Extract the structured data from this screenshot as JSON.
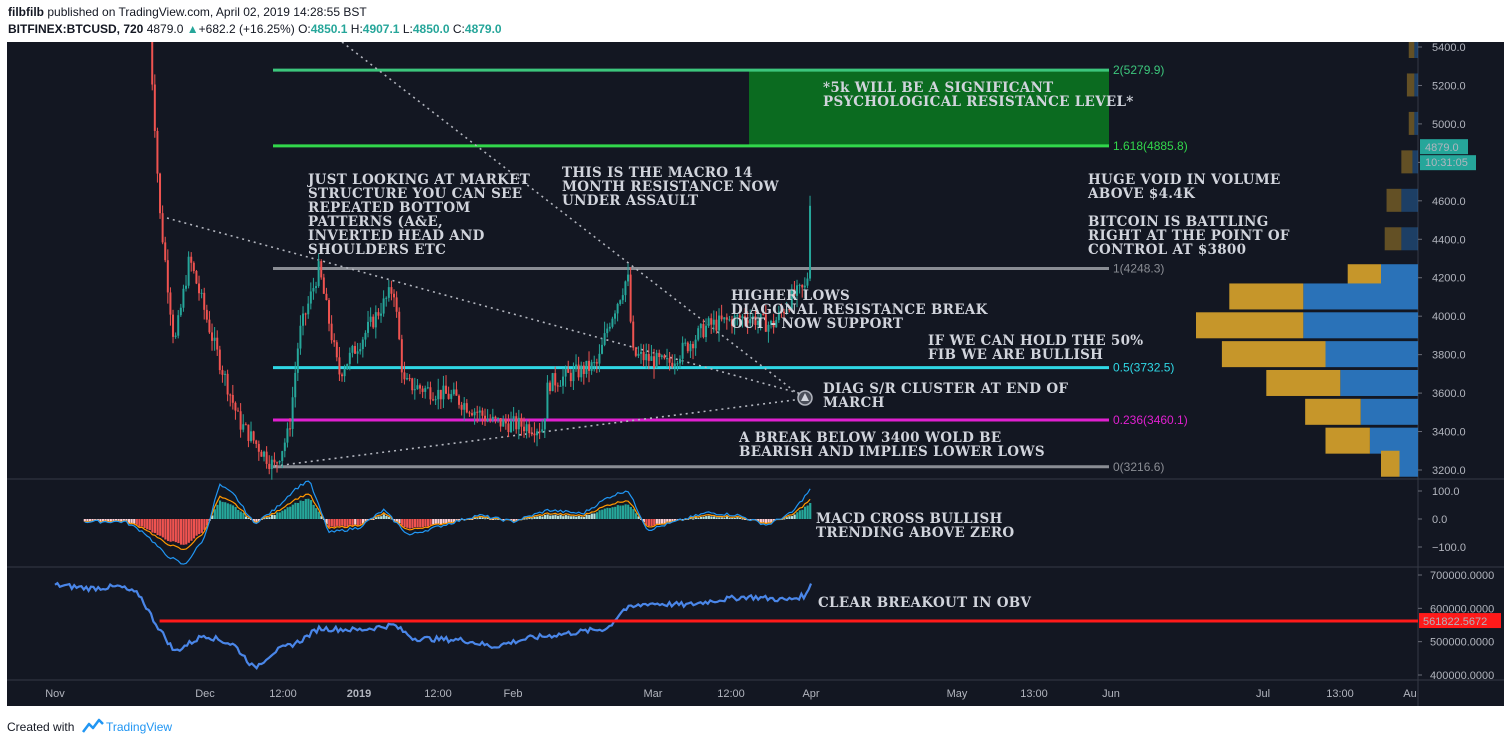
{
  "header": {
    "author": "filbfilb",
    "published_text": "published on TradingView.com, April 02, 2019 14:28:55 BST",
    "symbol": "BITFINEX:BTCUSD, 720",
    "last": "4879.0",
    "change": "+682.2 (+16.25%)",
    "o_label": "O:",
    "o_val": "4850.1",
    "h_label": "H:",
    "h_val": "4907.1",
    "l_label": "L:",
    "l_val": "4850.0",
    "c_label": "C:",
    "c_val": "4879.0"
  },
  "footer": {
    "created_with": "Created with",
    "brand": "TradingView"
  },
  "colors": {
    "background": "#131722",
    "up_candle": "#26a69a",
    "down_candle": "#ef5350",
    "fib_2": "#3cc67c",
    "fib_1618": "#32d74b",
    "fib_1": "#8a8d94",
    "fib_05": "#2fd8e6",
    "fib_0236": "#e020d0",
    "fib_0": "#8a8d94",
    "resistance_box": "#0b6b20",
    "obv_line": "#4a86e8",
    "obv_support": "#ff1a1a",
    "macd_line": "#2196f3",
    "signal_line": "#ff9800",
    "vp_up": "#2a72b8",
    "vp_down": "#c6962a"
  },
  "chart_data": [
    {
      "type": "candlestick",
      "title": "BITFINEX:BTCUSD, 720",
      "x_ticks": [
        "Nov",
        "Dec",
        "12:00",
        "2019",
        "12:00",
        "Feb",
        "Mar",
        "12:00",
        "Apr",
        "May",
        "13:00",
        "Jun",
        "Jul",
        "13:00",
        "Au"
      ],
      "y_ticks": [
        "5400.0",
        "5200.0",
        "5000.0",
        "4800.0",
        "4600.0",
        "4400.0",
        "4200.0",
        "4000.0",
        "3800.0",
        "3600.0",
        "3400.0",
        "3200.0"
      ],
      "ylim": [
        3150,
        5450
      ],
      "last_price": "4879.0",
      "countdown": "10:31:05",
      "price_path": [
        {
          "x": "Nov 20",
          "y": 5450
        },
        {
          "x": "Nov 22",
          "y": 4550
        },
        {
          "x": "Nov 25",
          "y": 3850
        },
        {
          "x": "Nov 28",
          "y": 4300
        },
        {
          "x": "Dec 3",
          "y": 3850
        },
        {
          "x": "Dec 8",
          "y": 3450
        },
        {
          "x": "Dec 15",
          "y": 3216.6
        },
        {
          "x": "Dec 18",
          "y": 3400
        },
        {
          "x": "Dec 20",
          "y": 3900
        },
        {
          "x": "Dec 24",
          "y": 4248
        },
        {
          "x": "Dec 28",
          "y": 3700
        },
        {
          "x": "Jan 2",
          "y": 3900
        },
        {
          "x": "Jan 8",
          "y": 4150
        },
        {
          "x": "Jan 10",
          "y": 3650
        },
        {
          "x": "Jan 20",
          "y": 3580
        },
        {
          "x": "Jan 28",
          "y": 3450
        },
        {
          "x": "Feb 7",
          "y": 3420
        },
        {
          "x": "Feb 8",
          "y": 3650
        },
        {
          "x": "Feb 18",
          "y": 3750
        },
        {
          "x": "Feb 20",
          "y": 3950
        },
        {
          "x": "Feb 24",
          "y": 4210
        },
        {
          "x": "Feb 25",
          "y": 3800
        },
        {
          "x": "Mar 4",
          "y": 3750
        },
        {
          "x": "Mar 12",
          "y": 3950
        },
        {
          "x": "Mar 20",
          "y": 4000
        },
        {
          "x": "Mar 25",
          "y": 3950
        },
        {
          "x": "Mar 29",
          "y": 4100
        },
        {
          "x": "Apr 1",
          "y": 4150
        },
        {
          "x": "Apr 2",
          "y": 4879
        }
      ],
      "fib_levels": [
        {
          "ratio": "2",
          "price": 5279.9,
          "label": "2(5279.9)"
        },
        {
          "ratio": "1.618",
          "price": 4885.8,
          "label": "1.618(4885.8)"
        },
        {
          "ratio": "1",
          "price": 4248.3,
          "label": "1(4248.3)"
        },
        {
          "ratio": "0.5",
          "price": 3732.5,
          "label": "0.5(3732.5)"
        },
        {
          "ratio": "0.236",
          "price": 3460.1,
          "label": "0.236(3460.1)"
        },
        {
          "ratio": "0",
          "price": 3216.6,
          "label": "0(3216.6)"
        }
      ],
      "volume_profile": [
        {
          "price": 5400,
          "up": 2,
          "down": 3
        },
        {
          "price": 5200,
          "up": 2,
          "down": 4
        },
        {
          "price": 5000,
          "up": 2,
          "down": 3
        },
        {
          "price": 4800,
          "up": 3,
          "down": 6
        },
        {
          "price": 4600,
          "up": 9,
          "down": 8
        },
        {
          "price": 4400,
          "up": 9,
          "down": 9
        },
        {
          "price": 4200,
          "up": 20,
          "down": 18
        },
        {
          "price": 4100,
          "up": 62,
          "down": 40
        },
        {
          "price": 3950,
          "up": 62,
          "down": 58
        },
        {
          "price": 3800,
          "up": 50,
          "down": 56
        },
        {
          "price": 3650,
          "up": 42,
          "down": 40
        },
        {
          "price": 3500,
          "up": 31,
          "down": 30
        },
        {
          "price": 3350,
          "up": 26,
          "down": 24
        },
        {
          "price": 3230,
          "up": 10,
          "down": 10
        }
      ],
      "annotations": {
        "resistance_note": [
          "*5k WILL BE A SIGNIFICANT",
          "PSYCHOLOGICAL RESISTANCE LEVEL*"
        ],
        "structure_note": [
          "JUST LOOKING AT MARKET",
          "STRUCTURE YOU CAN SEE",
          "REPEATED BOTTOM",
          "PATTERNS (A&E,",
          "INVERTED HEAD AND",
          "SHOULDERS ETC"
        ],
        "macro_note": [
          "THIS IS THE MACRO 14",
          "MONTH RESISTANCE NOW",
          "UNDER ASSAULT"
        ],
        "void_note": [
          "HUGE VOID IN VOLUME",
          "ABOVE $4.4K"
        ],
        "poc_note": [
          "BITCOIN IS BATTLING",
          "RIGHT AT THE POINT OF",
          "CONTROL AT $3800"
        ],
        "higher_lows_note": [
          "HIGHER LOWS",
          "DIAGONAL RESISTANCE BREAK",
          "OUT - NOW SUPPORT"
        ],
        "fib50_note": [
          "IF WE CAN HOLD THE 50%",
          "FIB WE ARE BULLISH"
        ],
        "diag_note": [
          "DIAG S/R  CLUSTER AT END OF",
          "MARCH"
        ],
        "break_note": [
          "A BREAK BELOW 3400 WOLD BE",
          "BEARISH AND IMPLIES LOWER LOWS"
        ]
      }
    },
    {
      "type": "bar",
      "title": "MACD",
      "y_ticks": [
        "100.0",
        "0.0",
        "−100.0"
      ],
      "ylim": [
        -180,
        140
      ],
      "annotation": [
        "MACD CROSS BULLISH",
        "TRENDING ABOVE ZERO"
      ],
      "histogram": [
        {
          "x": "Nov 15",
          "y": -8
        },
        {
          "x": "Nov 19",
          "y": -30
        },
        {
          "x": "Nov 23",
          "y": -72
        },
        {
          "x": "Nov 27",
          "y": -95
        },
        {
          "x": "Dec 1",
          "y": -40
        },
        {
          "x": "Dec 4",
          "y": 65
        },
        {
          "x": "Dec 7",
          "y": 45
        },
        {
          "x": "Dec 11",
          "y": -12
        },
        {
          "x": "Dec 15",
          "y": 15
        },
        {
          "x": "Dec 19",
          "y": 55
        },
        {
          "x": "Dec 22",
          "y": 75
        },
        {
          "x": "Dec 26",
          "y": -30
        },
        {
          "x": "Jan 1",
          "y": -20
        },
        {
          "x": "Jan 6",
          "y": 15
        },
        {
          "x": "Jan 11",
          "y": -35
        },
        {
          "x": "Jan 18",
          "y": -15
        },
        {
          "x": "Jan 25",
          "y": 5
        },
        {
          "x": "Feb 1",
          "y": -8
        },
        {
          "x": "Feb 8",
          "y": 15
        },
        {
          "x": "Feb 15",
          "y": 8
        },
        {
          "x": "Feb 20",
          "y": 40
        },
        {
          "x": "Feb 24",
          "y": 55
        },
        {
          "x": "Feb 28",
          "y": -25
        },
        {
          "x": "Mar 5",
          "y": -10
        },
        {
          "x": "Mar 12",
          "y": 10
        },
        {
          "x": "Mar 18",
          "y": 5
        },
        {
          "x": "Mar 24",
          "y": -15
        },
        {
          "x": "Mar 29",
          "y": 10
        },
        {
          "x": "Apr 2",
          "y": 60
        }
      ]
    },
    {
      "type": "line",
      "title": "OBV",
      "y_ticks": [
        "700000.0000",
        "600000.0000",
        "500000.0000",
        "400000.0000"
      ],
      "ylim": [
        395000,
        710000
      ],
      "support_level": "561822.5672",
      "annotation": "CLEAR BREAKOUT IN OBV",
      "obv": [
        {
          "x": "Nov 1",
          "y": 670000
        },
        {
          "x": "Nov 8",
          "y": 660000
        },
        {
          "x": "Nov 14",
          "y": 665000
        },
        {
          "x": "Nov 18",
          "y": 640000
        },
        {
          "x": "Nov 21",
          "y": 560000
        },
        {
          "x": "Nov 25",
          "y": 470000
        },
        {
          "x": "Dec 1",
          "y": 520000
        },
        {
          "x": "Dec 7",
          "y": 490000
        },
        {
          "x": "Dec 11",
          "y": 420000
        },
        {
          "x": "Dec 15",
          "y": 470000
        },
        {
          "x": "Dec 20",
          "y": 500000
        },
        {
          "x": "Dec 24",
          "y": 540000
        },
        {
          "x": "Jan 1",
          "y": 535000
        },
        {
          "x": "Jan 8",
          "y": 550000
        },
        {
          "x": "Jan 12",
          "y": 510000
        },
        {
          "x": "Jan 22",
          "y": 505000
        },
        {
          "x": "Jan 28",
          "y": 485000
        },
        {
          "x": "Feb 4",
          "y": 510000
        },
        {
          "x": "Feb 12",
          "y": 525000
        },
        {
          "x": "Feb 20",
          "y": 540000
        },
        {
          "x": "Feb 23",
          "y": 595000
        },
        {
          "x": "Feb 28",
          "y": 615000
        },
        {
          "x": "Mar 8",
          "y": 610000
        },
        {
          "x": "Mar 14",
          "y": 625000
        },
        {
          "x": "Mar 20",
          "y": 635000
        },
        {
          "x": "Mar 28",
          "y": 625000
        },
        {
          "x": "Apr 1",
          "y": 640000
        },
        {
          "x": "Apr 2",
          "y": 690000
        }
      ]
    }
  ]
}
